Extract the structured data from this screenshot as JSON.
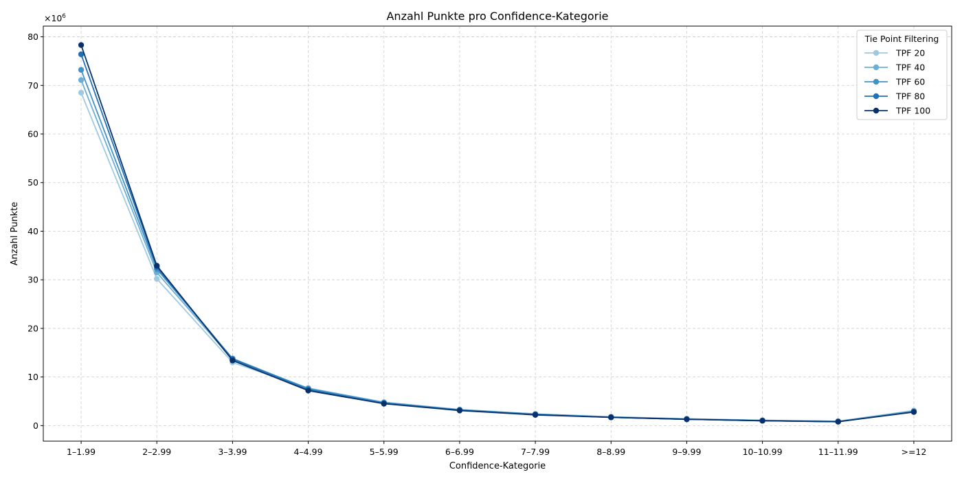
{
  "chart_data": {
    "type": "line",
    "title": "Anzahl Punkte pro Confidence-Kategorie",
    "xlabel": "Confidence-Kategorie",
    "ylabel": "Anzahl Punkte",
    "y_offset_prefix": "×10",
    "y_offset_exponent": "6",
    "y_scale": 1000000,
    "ylim": [
      -3.2,
      82.2
    ],
    "yticks": [
      0,
      10,
      20,
      30,
      40,
      50,
      60,
      70,
      80
    ],
    "categories": [
      "1–1.99",
      "2–2.99",
      "3–3.99",
      "4–4.99",
      "5–5.99",
      "6–6.99",
      "7–7.99",
      "8–8.99",
      "9–9.99",
      "10–10.99",
      "11–11.99",
      ">=12"
    ],
    "grid": true,
    "legend_title": "Tie Point Filtering",
    "legend_position": "top-right",
    "series": [
      {
        "name": "TPF 20",
        "color": "#9ecae1",
        "values": [
          68.5,
          30.2,
          13.0,
          7.6,
          4.8,
          3.3,
          2.4,
          1.8,
          1.4,
          1.1,
          0.9,
          3.1
        ]
      },
      {
        "name": "TPF 40",
        "color": "#6baed6",
        "values": [
          71.1,
          31.5,
          13.6,
          7.7,
          4.8,
          3.3,
          2.4,
          1.8,
          1.4,
          1.1,
          0.9,
          3.0
        ]
      },
      {
        "name": "TPF 60",
        "color": "#4292c6",
        "values": [
          73.2,
          32.2,
          13.8,
          7.6,
          4.7,
          3.2,
          2.3,
          1.7,
          1.3,
          1.0,
          0.8,
          2.9
        ]
      },
      {
        "name": "TPF 80",
        "color": "#2171b5",
        "values": [
          76.4,
          32.6,
          13.7,
          7.4,
          4.6,
          3.2,
          2.3,
          1.7,
          1.3,
          1.0,
          0.8,
          2.8
        ]
      },
      {
        "name": "TPF 100",
        "color": "#08306b",
        "values": [
          78.3,
          32.9,
          13.4,
          7.2,
          4.5,
          3.1,
          2.2,
          1.7,
          1.3,
          1.0,
          0.8,
          2.8
        ]
      }
    ]
  }
}
